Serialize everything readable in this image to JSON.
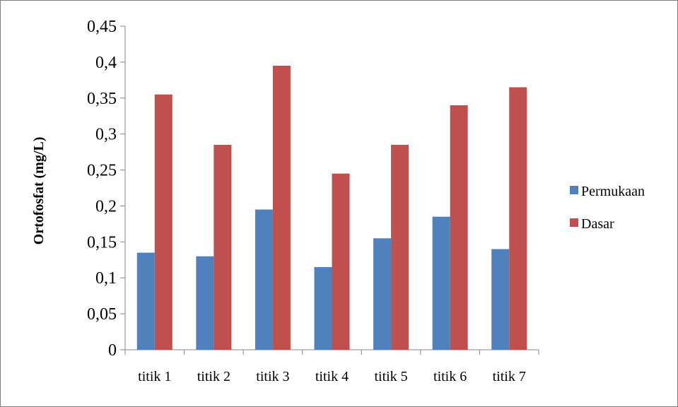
{
  "chart_data": {
    "type": "bar",
    "categories": [
      "titik 1",
      "titik 2",
      "titik 3",
      "titik 4",
      "titik 5",
      "titik 6",
      "titik 7"
    ],
    "series": [
      {
        "name": "Permukaan",
        "color": "#4f81bd",
        "values": [
          0.135,
          0.13,
          0.195,
          0.115,
          0.155,
          0.185,
          0.14
        ]
      },
      {
        "name": "Dasar",
        "color": "#c0504d",
        "values": [
          0.355,
          0.285,
          0.395,
          0.245,
          0.285,
          0.34,
          0.365
        ]
      }
    ],
    "ylabel": "Ortofosfat (mg/L)",
    "xlabel": "",
    "ylim": [
      0,
      0.45
    ],
    "yticks": [
      "0",
      "0,05",
      "0,1",
      "0,15",
      "0,2",
      "0,25",
      "0,3",
      "0,35",
      "0,4",
      "0,45"
    ],
    "grid": false,
    "legend_position": "right"
  }
}
